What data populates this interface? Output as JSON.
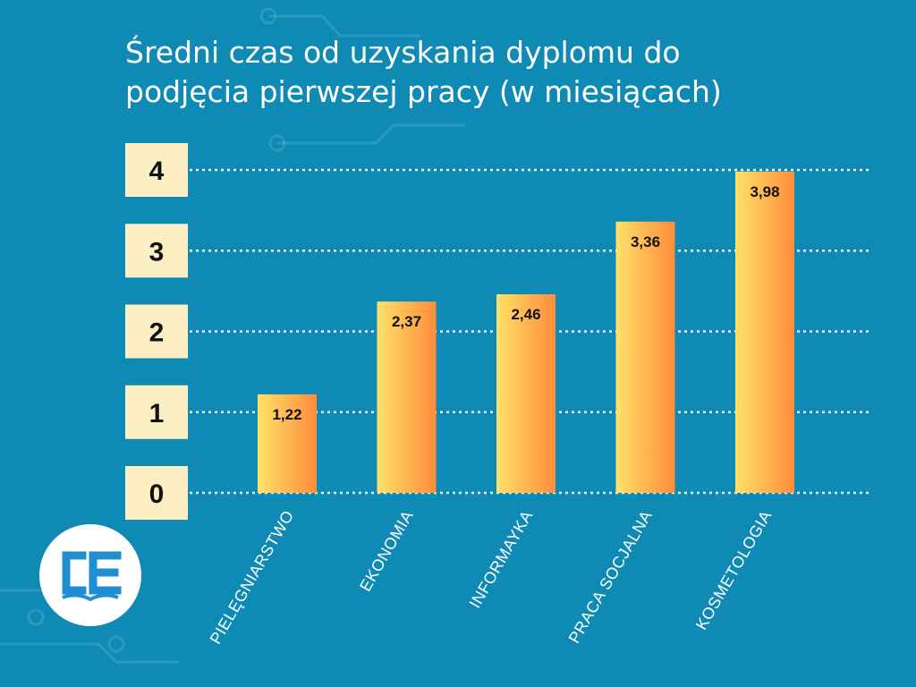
{
  "logo": {
    "icon": "ce-book-icon",
    "accent": "#1f8fd1"
  },
  "chart_data": {
    "type": "bar",
    "title": "Średni czas od uzyskania dyplomu do podjęcia pierwszej pracy (w miesiącach)",
    "title_lines": [
      "Średni czas od uzyskania dyplomu do",
      "podjęcia pierwszej pracy (w miesiącach)"
    ],
    "categories": [
      "PIELĘGNIARSTWO",
      "EKONOMIA",
      "INFORMAYKA",
      "PRACA SOCJALNA",
      "KOSMETOLOGIA"
    ],
    "values": [
      1.22,
      2.37,
      2.46,
      3.36,
      3.98
    ],
    "value_labels": [
      "1,22",
      "2,37",
      "2,46",
      "3,36",
      "3,98"
    ],
    "yticks": [
      "0",
      "1",
      "2",
      "3",
      "4"
    ],
    "ylim": [
      0,
      4
    ],
    "grid": true,
    "colors": {
      "background": "#0e8ab5",
      "bar_left": "#ffe26a",
      "bar_right": "#ff8c3a",
      "tick_box": "#fcefc4"
    }
  }
}
